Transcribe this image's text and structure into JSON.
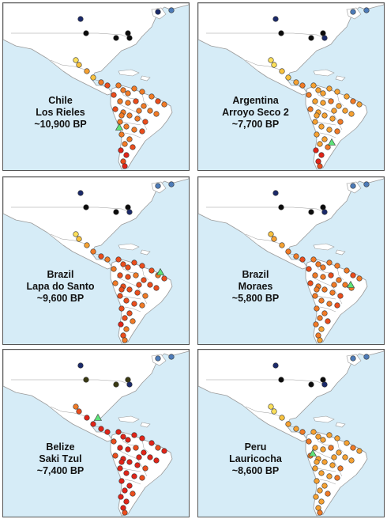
{
  "colors": {
    "ocean": "#d6ecf7",
    "land": "#ffffff",
    "border": "#9a9a9a",
    "frame": "#555555",
    "ancient_sample": "#5ee37a"
  },
  "palette": {
    "red": "#e02418",
    "orange_red": "#ea4d1c",
    "orange": "#f07a26",
    "light_orange": "#f5a132",
    "yellow_orange": "#f8c23f",
    "yellow": "#fbdf5a",
    "black": "#0c0c0c",
    "navy": "#1b2a6a",
    "steel_blue": "#4d7bb8",
    "dark_olive": "#3a3a12"
  },
  "panels": [
    {
      "country": "Chile",
      "site": "Los Rieles",
      "age": "~10,900 BP",
      "triangle": [
        [
          147,
          157
        ]
      ],
      "north": [
        "navy",
        "black",
        "black",
        "black",
        "black",
        "navy",
        "steel_blue"
      ],
      "sa_color": "orange",
      "meso": [
        "yellow",
        "yellow_orange",
        "light_orange",
        "yellow_orange",
        "orange",
        "orange_red"
      ],
      "south": [
        "red",
        "orange_red",
        "red",
        "red"
      ]
    },
    {
      "country": "Argentina",
      "site": "Arroyo Seco 2",
      "age": "~7,700 BP",
      "triangle": [
        [
          169,
          176
        ]
      ],
      "north": [
        "navy",
        "black",
        "black",
        "black",
        "navy",
        "steel_blue",
        "steel_blue"
      ],
      "sa_color": "light_orange",
      "meso": [
        "yellow",
        "yellow",
        "yellow_orange",
        "yellow_orange",
        "light_orange",
        "orange"
      ],
      "south": [
        "red",
        "red",
        "orange_red",
        "red"
      ]
    },
    {
      "country": "Brazil",
      "site": "Lapa do Santo",
      "age": "~9,600 BP",
      "triangle": [
        [
          199,
          120
        ]
      ],
      "north": [
        "navy",
        "black",
        "black",
        "black",
        "navy",
        "steel_blue",
        "steel_blue"
      ],
      "sa_color": "orange_red",
      "meso": [
        "yellow",
        "yellow_orange",
        "light_orange",
        "orange",
        "orange_red",
        "orange"
      ],
      "south": [
        "orange",
        "orange_red",
        "orange",
        "red"
      ]
    },
    {
      "country": "Brazil",
      "site": "Moraes",
      "age": "~5,800 BP",
      "triangle": [
        [
          193,
          136
        ]
      ],
      "north": [
        "navy",
        "black",
        "black",
        "black",
        "navy",
        "steel_blue",
        "steel_blue"
      ],
      "sa_color": "orange",
      "meso": [
        "yellow_orange",
        "light_orange",
        "light_orange",
        "orange",
        "orange",
        "orange_red"
      ],
      "south": [
        "light_orange",
        "orange",
        "light_orange",
        "orange"
      ]
    },
    {
      "country": "Belize",
      "site": "Saki Tzul",
      "age": "~7,400 BP",
      "triangle": [
        [
          120,
          86
        ]
      ],
      "north": [
        "navy",
        "dark_olive",
        "dark_olive",
        "dark_olive",
        "navy",
        "steel_blue",
        "steel_blue"
      ],
      "sa_color": "red",
      "meso": [
        "orange",
        "orange_red",
        "red",
        "red",
        "red",
        "red"
      ],
      "south": [
        "red",
        "red",
        "orange_red",
        "red"
      ]
    },
    {
      "country": "Peru",
      "site": "Lauricocha",
      "age": "~8,600 BP",
      "triangle": [
        [
          145,
          131
        ]
      ],
      "north": [
        "navy",
        "black",
        "black",
        "black",
        "navy",
        "steel_blue",
        "steel_blue"
      ],
      "sa_color": "light_orange",
      "meso": [
        "yellow",
        "yellow",
        "yellow_orange",
        "light_orange",
        "light_orange",
        "orange"
      ],
      "south": [
        "light_orange",
        "light_orange",
        "orange",
        "light_orange"
      ]
    }
  ]
}
